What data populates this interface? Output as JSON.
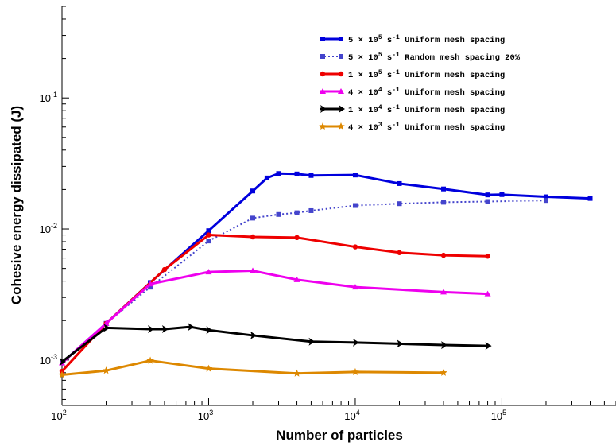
{
  "chart_data": {
    "type": "line",
    "xlabel": "Number of particles",
    "ylabel": "Cohesive energy dissipated (J)",
    "xscale": "log",
    "yscale": "log",
    "xlim": [
      100,
      600000
    ],
    "ylim": [
      0.00045,
      0.5
    ],
    "grid": false,
    "legend_position": "top-right",
    "x_ticks": [
      {
        "base": "10",
        "exp": "2",
        "value": 100
      },
      {
        "base": "10",
        "exp": "3",
        "value": 1000
      },
      {
        "base": "10",
        "exp": "4",
        "value": 10000
      },
      {
        "base": "10",
        "exp": "5",
        "value": 100000
      }
    ],
    "y_ticks": [
      {
        "base": "10",
        "exp": "-3",
        "value": 0.001
      },
      {
        "base": "10",
        "exp": "-2",
        "value": 0.01
      },
      {
        "base": "10",
        "exp": "-1",
        "value": 0.1
      }
    ],
    "series": [
      {
        "name_pre": "5 × 10",
        "name_exp": "5",
        "name_post": " s",
        "name_unit_exp": "-1",
        "name_tail": " Uniform mesh spacing",
        "color": "#0000dd",
        "dash": "",
        "marker": "square",
        "x": [
          100,
          200,
          400,
          1000,
          2000,
          2500,
          3000,
          4000,
          5000,
          10000,
          20000,
          40000,
          80000,
          100000,
          200000,
          400000
        ],
        "y": [
          0.00095,
          0.0019,
          0.0039,
          0.0097,
          0.0195,
          0.0245,
          0.0265,
          0.0263,
          0.0256,
          0.0258,
          0.0222,
          0.0202,
          0.0182,
          0.0183,
          0.0176,
          0.0171
        ]
      },
      {
        "name_pre": "5 × 10",
        "name_exp": "5",
        "name_post": " s",
        "name_unit_exp": "-1",
        "name_tail": " Random mesh spacing 20%",
        "color": "#4444cc",
        "dash": "2,3",
        "marker": "square",
        "x": [
          100,
          200,
          400,
          1000,
          2000,
          3000,
          4000,
          5000,
          10000,
          20000,
          40000,
          80000,
          200000
        ],
        "y": [
          0.00095,
          0.0019,
          0.0036,
          0.0081,
          0.0121,
          0.0129,
          0.0133,
          0.0138,
          0.0151,
          0.0156,
          0.016,
          0.0162,
          0.0165
        ]
      },
      {
        "name_pre": "1 × 10",
        "name_exp": "5",
        "name_post": " s",
        "name_unit_exp": "-1",
        "name_tail": " Uniform mesh spacing",
        "color": "#ee0000",
        "dash": "",
        "marker": "circle",
        "x": [
          100,
          200,
          500,
          1000,
          2000,
          4000,
          10000,
          20000,
          40000,
          80000
        ],
        "y": [
          0.00082,
          0.0019,
          0.0049,
          0.009,
          0.0087,
          0.0086,
          0.0073,
          0.0066,
          0.0063,
          0.0062
        ]
      },
      {
        "name_pre": "4 × 10",
        "name_exp": "4",
        "name_post": " s",
        "name_unit_exp": "-1",
        "name_tail": " Uniform mesh spacing",
        "color": "#ee00ee",
        "dash": "",
        "marker": "triangle",
        "x": [
          100,
          200,
          400,
          1000,
          2000,
          4000,
          10000,
          40000,
          80000
        ],
        "y": [
          0.00095,
          0.0019,
          0.0038,
          0.0047,
          0.0048,
          0.0041,
          0.0036,
          0.0033,
          0.0032
        ]
      },
      {
        "name_pre": "1 × 10",
        "name_exp": "4",
        "name_post": " s",
        "name_unit_exp": "-1",
        "name_tail": " Uniform mesh spacing",
        "color": "#000000",
        "dash": "",
        "marker": "arrow",
        "x": [
          100,
          200,
          400,
          500,
          750,
          1000,
          2000,
          5000,
          10000,
          20000,
          40000,
          80000
        ],
        "y": [
          0.00097,
          0.00176,
          0.00172,
          0.00172,
          0.00179,
          0.00169,
          0.00154,
          0.00138,
          0.00136,
          0.00133,
          0.0013,
          0.00128
        ]
      },
      {
        "name_pre": "4 × 10",
        "name_exp": "3",
        "name_post": " s",
        "name_unit_exp": "-1",
        "name_tail": " Uniform mesh spacing",
        "color": "#dd8800",
        "dash": "",
        "marker": "star",
        "x": [
          100,
          200,
          400,
          1000,
          4000,
          10000,
          40000
        ],
        "y": [
          0.00077,
          0.00083,
          0.00099,
          0.00086,
          0.00079,
          0.00081,
          0.0008
        ]
      }
    ]
  }
}
